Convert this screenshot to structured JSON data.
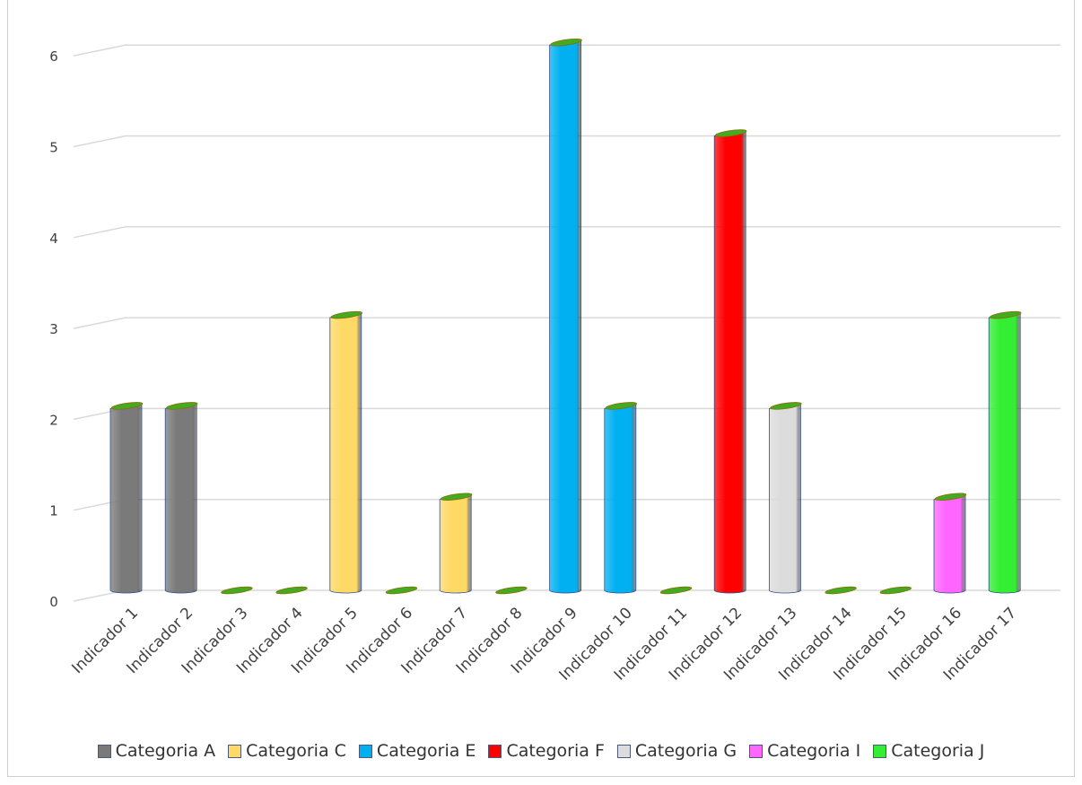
{
  "chart_data": {
    "type": "bar",
    "title": "",
    "xlabel": "",
    "ylabel": "",
    "ylim": [
      0,
      6
    ],
    "yticks": [
      0,
      1,
      2,
      3,
      4,
      5,
      6
    ],
    "grid": true,
    "legend_position": "bottom",
    "categories": [
      "Indicador 1",
      "Indicador 2",
      "Indicador 3",
      "Indicador 4",
      "Indicador 5",
      "Indicador 6",
      "Indicador 7",
      "Indicador 8",
      "Indicador 9",
      "Indicador 10",
      "Indicador 11",
      "Indicador 12",
      "Indicador 13",
      "Indicador 14",
      "Indicador 15",
      "Indicador 16",
      "Indicador 17"
    ],
    "values": [
      2,
      2,
      0,
      0,
      3,
      0,
      1,
      0,
      6,
      2,
      0,
      5,
      2,
      0,
      0,
      1,
      3
    ],
    "bar_series": [
      "Categoria A",
      "Categoria A",
      null,
      null,
      "Categoria C",
      null,
      "Categoria C",
      null,
      "Categoria E",
      "Categoria E",
      null,
      "Categoria F",
      "Categoria G",
      null,
      null,
      "Categoria I",
      "Categoria J"
    ],
    "series": [
      {
        "name": "Categoria A",
        "color": "#7a7a7a"
      },
      {
        "name": "Categoria C",
        "color": "#ffd966"
      },
      {
        "name": "Categoria E",
        "color": "#00b0f0"
      },
      {
        "name": "Categoria F",
        "color": "#ff0000"
      },
      {
        "name": "Categoria G",
        "color": "#dcdcdc"
      },
      {
        "name": "Categoria I",
        "color": "#ff66ff"
      },
      {
        "name": "Categoria J",
        "color": "#33ee33"
      }
    ],
    "cap_color": "#44aa22"
  }
}
